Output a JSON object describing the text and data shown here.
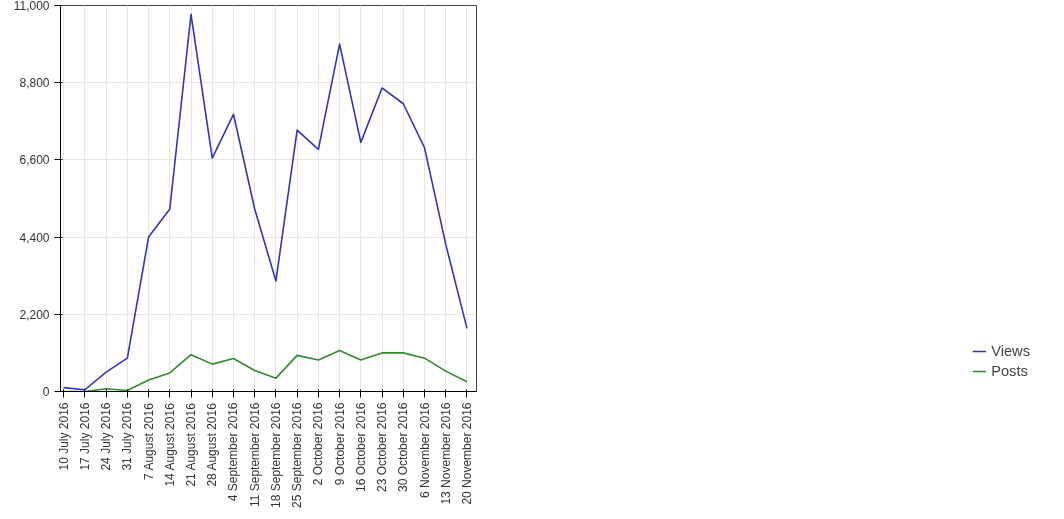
{
  "chart_data": {
    "type": "line",
    "categories": [
      "10 July 2016",
      "17 July 2016",
      "24 July 2016",
      "31 July 2016",
      "7 August 2016",
      "14 August 2016",
      "21 August 2016",
      "28 August 2016",
      "4 September 2016",
      "11 September 2016",
      "18 September 2016",
      "25 September 2016",
      "2 October 2016",
      "9 October 2016",
      "16 October 2016",
      "23 October 2016",
      "30 October 2016",
      "6 November 2016",
      "13 November 2016",
      "20 November 2016"
    ],
    "series": [
      {
        "name": "Views",
        "color": "#3333bb",
        "values": [
          110,
          50,
          550,
          950,
          4400,
          5200,
          10750,
          6650,
          7900,
          5200,
          3150,
          7450,
          6900,
          9900,
          7100,
          8650,
          8200,
          6950,
          4200,
          1800
        ]
      },
      {
        "name": "Posts",
        "color": "#2e8b2e",
        "values": [
          0,
          0,
          80,
          30,
          330,
          530,
          1050,
          780,
          940,
          600,
          380,
          1030,
          900,
          1170,
          900,
          1100,
          1100,
          950,
          580,
          280
        ]
      }
    ],
    "ylim": [
      0,
      11000
    ],
    "yticks": [
      {
        "value": 0,
        "label": "0"
      },
      {
        "value": 2200,
        "label": "2,200"
      },
      {
        "value": 4400,
        "label": "4,400"
      },
      {
        "value": 6600,
        "label": "6,600"
      },
      {
        "value": 8800,
        "label": "8,800"
      },
      {
        "value": 11000,
        "label": "11,000"
      }
    ],
    "grid": true,
    "legend": "bottom right",
    "marker": "none",
    "line_style": "solid"
  }
}
